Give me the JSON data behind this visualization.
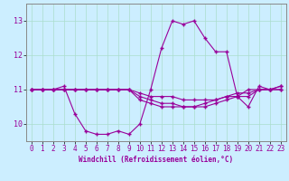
{
  "xlabel": "Windchill (Refroidissement éolien,°C)",
  "bg_color": "#cceeff",
  "line_color": "#990099",
  "grid_color": "#aaddcc",
  "hours": [
    0,
    1,
    2,
    3,
    4,
    5,
    6,
    7,
    8,
    9,
    10,
    11,
    12,
    13,
    14,
    15,
    16,
    17,
    18,
    19,
    20,
    21,
    22,
    23
  ],
  "series1": [
    11.0,
    11.0,
    11.0,
    11.1,
    10.3,
    9.8,
    9.7,
    9.7,
    9.8,
    9.7,
    10.0,
    11.0,
    12.2,
    13.0,
    12.9,
    13.0,
    12.5,
    12.1,
    12.1,
    10.8,
    10.5,
    11.1,
    11.0,
    11.1
  ],
  "series2": [
    11.0,
    11.0,
    11.0,
    11.0,
    11.0,
    11.0,
    11.0,
    11.0,
    11.0,
    11.0,
    10.9,
    10.8,
    10.8,
    10.8,
    10.7,
    10.7,
    10.7,
    10.7,
    10.8,
    10.9,
    10.9,
    11.0,
    11.0,
    11.0
  ],
  "series3": [
    11.0,
    11.0,
    11.0,
    11.0,
    11.0,
    11.0,
    11.0,
    11.0,
    11.0,
    11.0,
    10.8,
    10.7,
    10.6,
    10.6,
    10.5,
    10.5,
    10.5,
    10.6,
    10.7,
    10.8,
    10.8,
    11.0,
    11.0,
    11.0
  ],
  "series4": [
    11.0,
    11.0,
    11.0,
    11.0,
    11.0,
    11.0,
    11.0,
    11.0,
    11.0,
    11.0,
    10.7,
    10.6,
    10.5,
    10.5,
    10.5,
    10.5,
    10.6,
    10.7,
    10.8,
    10.8,
    11.0,
    11.0,
    11.0,
    11.1
  ],
  "ylim": [
    9.5,
    13.5
  ],
  "yticks": [
    10,
    11,
    12,
    13
  ],
  "xticks": [
    0,
    1,
    2,
    3,
    4,
    5,
    6,
    7,
    8,
    9,
    10,
    11,
    12,
    13,
    14,
    15,
    16,
    17,
    18,
    19,
    20,
    21,
    22,
    23
  ],
  "tick_fontsize": 5.5,
  "xlabel_fontsize": 5.5,
  "ytick_fontsize": 6.0
}
